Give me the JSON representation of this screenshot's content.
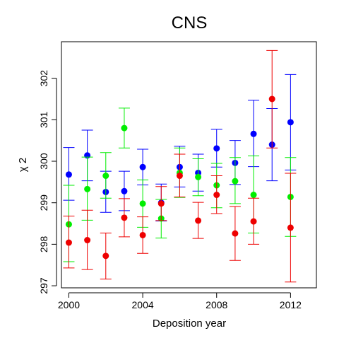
{
  "chart_data": {
    "type": "scatter",
    "title": "CNS",
    "xlabel": "Deposition year",
    "ylabel": "χ 2",
    "xlim": [
      1999.6,
      2013.4
    ],
    "ylim": [
      296.95,
      302.88
    ],
    "x_ticks": [
      2000,
      2004,
      2008,
      2012
    ],
    "x_tick_labels": [
      "2000",
      "2004",
      "2008",
      "2012"
    ],
    "y_ticks": [
      297,
      298,
      299,
      300,
      301,
      302
    ],
    "y_tick_labels": [
      "297",
      "298",
      "299",
      "300",
      "301",
      "302"
    ],
    "grid": false,
    "series": [
      {
        "color": "#0000ff",
        "points": [
          {
            "x": 2000,
            "y": 299.68,
            "lo": 299.06,
            "hi": 300.33
          },
          {
            "x": 2001,
            "y": 300.14,
            "lo": 299.53,
            "hi": 300.75
          },
          {
            "x": 2002,
            "y": 299.26,
            "lo": 298.77,
            "hi": 299.76
          },
          {
            "x": 2003,
            "y": 299.28,
            "lo": 298.81,
            "hi": 299.76
          },
          {
            "x": 2004,
            "y": 299.86,
            "lo": 299.43,
            "hi": 300.29
          },
          {
            "x": 2005,
            "y": 299.0,
            "lo": 298.56,
            "hi": 299.45
          },
          {
            "x": 2006,
            "y": 299.86,
            "lo": 299.38,
            "hi": 300.36
          },
          {
            "x": 2007,
            "y": 299.72,
            "lo": 299.28,
            "hi": 300.17
          },
          {
            "x": 2008,
            "y": 300.31,
            "lo": 299.86,
            "hi": 300.77
          },
          {
            "x": 2009,
            "y": 299.96,
            "lo": 299.44,
            "hi": 300.5
          },
          {
            "x": 2010,
            "y": 300.66,
            "lo": 299.87,
            "hi": 301.47
          },
          {
            "x": 2011,
            "y": 300.4,
            "lo": 299.53,
            "hi": 301.27
          },
          {
            "x": 2012,
            "y": 300.94,
            "lo": 299.79,
            "hi": 302.09
          }
        ]
      },
      {
        "color": "#00ee00",
        "points": [
          {
            "x": 2000,
            "y": 298.48,
            "lo": 297.58,
            "hi": 299.42
          },
          {
            "x": 2001,
            "y": 299.33,
            "lo": 298.58,
            "hi": 300.1
          },
          {
            "x": 2002,
            "y": 299.65,
            "lo": 299.11,
            "hi": 300.21
          },
          {
            "x": 2003,
            "y": 300.8,
            "lo": 300.32,
            "hi": 301.28
          },
          {
            "x": 2004,
            "y": 298.98,
            "lo": 298.41,
            "hi": 299.55
          },
          {
            "x": 2005,
            "y": 298.62,
            "lo": 298.15,
            "hi": 299.08
          },
          {
            "x": 2006,
            "y": 299.72,
            "lo": 299.13,
            "hi": 300.32
          },
          {
            "x": 2007,
            "y": 299.62,
            "lo": 299.17,
            "hi": 300.06
          },
          {
            "x": 2008,
            "y": 299.42,
            "lo": 298.88,
            "hi": 299.95
          },
          {
            "x": 2009,
            "y": 299.52,
            "lo": 298.98,
            "hi": 300.09
          },
          {
            "x": 2010,
            "y": 299.19,
            "lo": 298.27,
            "hi": 300.13
          },
          {
            "x": 2012,
            "y": 299.14,
            "lo": 298.19,
            "hi": 300.09
          }
        ]
      },
      {
        "color": "#ee0000",
        "points": [
          {
            "x": 2000,
            "y": 298.04,
            "lo": 297.43,
            "hi": 298.68
          },
          {
            "x": 2001,
            "y": 298.1,
            "lo": 297.39,
            "hi": 298.82
          },
          {
            "x": 2002,
            "y": 297.72,
            "lo": 297.16,
            "hi": 298.27
          },
          {
            "x": 2003,
            "y": 298.64,
            "lo": 298.18,
            "hi": 299.1
          },
          {
            "x": 2004,
            "y": 298.22,
            "lo": 297.78,
            "hi": 298.66
          },
          {
            "x": 2005,
            "y": 298.98,
            "lo": 298.57,
            "hi": 299.39
          },
          {
            "x": 2006,
            "y": 299.65,
            "lo": 299.14,
            "hi": 300.17
          },
          {
            "x": 2007,
            "y": 298.57,
            "lo": 298.14,
            "hi": 299.01
          },
          {
            "x": 2008,
            "y": 299.19,
            "lo": 298.74,
            "hi": 299.65
          },
          {
            "x": 2009,
            "y": 298.26,
            "lo": 297.61,
            "hi": 298.91
          },
          {
            "x": 2010,
            "y": 298.55,
            "lo": 298.0,
            "hi": 299.11
          },
          {
            "x": 2011,
            "y": 301.5,
            "lo": 300.32,
            "hi": 302.67
          },
          {
            "x": 2012,
            "y": 298.4,
            "lo": 297.09,
            "hi": 299.71
          }
        ]
      }
    ]
  }
}
